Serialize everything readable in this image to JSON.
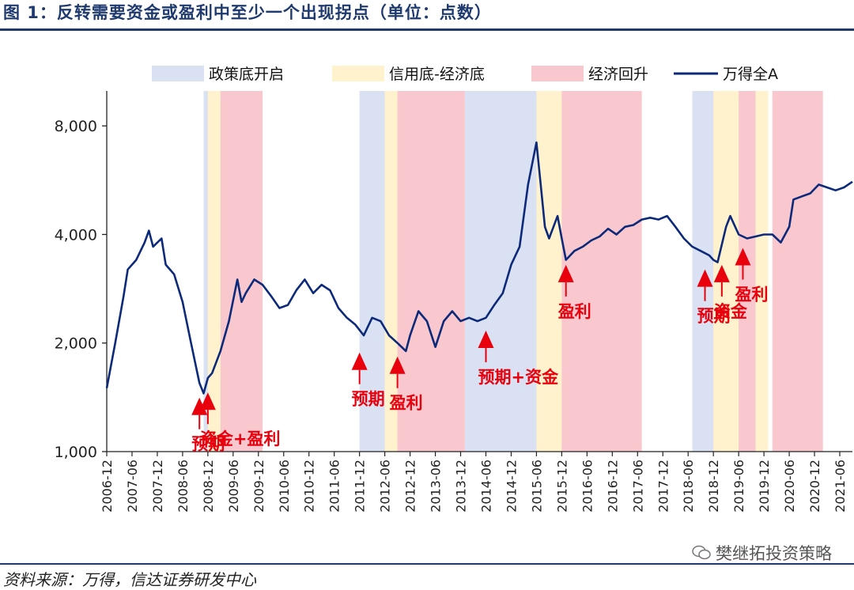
{
  "title": "图 1：反转需要资金或盈利中至少一个出现拐点（单位：点数）",
  "source": "资料来源：万得，信达证券研发中心",
  "watermark": "樊继拓投资策略",
  "colors": {
    "accent": "#1f3a6e",
    "line": "#0d2a7a",
    "policy": "#d9e1f2",
    "credit": "#fff2cc",
    "recovery": "#f8c8ce",
    "annotation": "#e8000d"
  },
  "chart_data": {
    "type": "line",
    "y_scale": "log",
    "ylim": [
      1000,
      10000
    ],
    "yticks": [
      1000,
      2000,
      4000,
      8000
    ],
    "ytick_labels": [
      "1,000",
      "2,000",
      "4,000",
      "8,000"
    ],
    "xticks": [
      "2006-12",
      "2007-06",
      "2007-12",
      "2008-06",
      "2008-12",
      "2009-06",
      "2009-12",
      "2010-06",
      "2010-12",
      "2011-06",
      "2011-12",
      "2012-06",
      "2012-12",
      "2013-06",
      "2013-12",
      "2014-06",
      "2014-12",
      "2015-06",
      "2015-12",
      "2016-06",
      "2016-12",
      "2017-06",
      "2017-12",
      "2018-06",
      "2018-12",
      "2019-06",
      "2019-12",
      "2020-06",
      "2020-12",
      "2021-06"
    ],
    "legend": [
      "政策底开启",
      "信用底-经济底",
      "经济回升",
      "万得全A"
    ],
    "legend_position": "top",
    "series": [
      {
        "name": "万得全A",
        "x": [
          "2006-12",
          "2007-02",
          "2007-04",
          "2007-05",
          "2007-07",
          "2007-09",
          "2007-10",
          "2007-11",
          "2008-01",
          "2008-02",
          "2008-04",
          "2008-06",
          "2008-08",
          "2008-10",
          "2008-11",
          "2008-12",
          "2009-01",
          "2009-03",
          "2009-05",
          "2009-07",
          "2009-08",
          "2009-09",
          "2009-11",
          "2010-01",
          "2010-03",
          "2010-05",
          "2010-07",
          "2010-09",
          "2010-11",
          "2011-01",
          "2011-03",
          "2011-05",
          "2011-07",
          "2011-09",
          "2011-11",
          "2012-01",
          "2012-03",
          "2012-05",
          "2012-07",
          "2012-09",
          "2012-11",
          "2012-12",
          "2013-02",
          "2013-04",
          "2013-06",
          "2013-08",
          "2013-10",
          "2013-12",
          "2014-02",
          "2014-04",
          "2014-06",
          "2014-08",
          "2014-10",
          "2014-12",
          "2015-02",
          "2015-04",
          "2015-06",
          "2015-07",
          "2015-08",
          "2015-09",
          "2015-11",
          "2015-12",
          "2016-01",
          "2016-03",
          "2016-05",
          "2016-07",
          "2016-09",
          "2016-11",
          "2017-01",
          "2017-03",
          "2017-05",
          "2017-07",
          "2017-09",
          "2017-11",
          "2018-01",
          "2018-03",
          "2018-05",
          "2018-07",
          "2018-09",
          "2018-11",
          "2018-12",
          "2019-01",
          "2019-03",
          "2019-04",
          "2019-06",
          "2019-08",
          "2019-10",
          "2019-12",
          "2020-02",
          "2020-04",
          "2020-06",
          "2020-07",
          "2020-09",
          "2020-11",
          "2021-01",
          "2021-03",
          "2021-05",
          "2021-07",
          "2021-09"
        ],
        "y": [
          1500,
          2000,
          2700,
          3200,
          3400,
          3800,
          4100,
          3700,
          3900,
          3300,
          3100,
          2600,
          2000,
          1550,
          1450,
          1600,
          1650,
          1900,
          2300,
          3000,
          2600,
          2750,
          3000,
          2900,
          2700,
          2500,
          2550,
          2800,
          3000,
          2750,
          2900,
          2800,
          2500,
          2350,
          2250,
          2100,
          2350,
          2300,
          2100,
          2000,
          1900,
          2100,
          2450,
          2300,
          1950,
          2300,
          2450,
          2300,
          2350,
          2300,
          2350,
          2550,
          2750,
          3300,
          3700,
          5500,
          7200,
          5500,
          4200,
          3900,
          4500,
          3900,
          3400,
          3600,
          3700,
          3850,
          3950,
          4150,
          4000,
          4200,
          4250,
          4400,
          4450,
          4400,
          4500,
          4200,
          3900,
          3700,
          3600,
          3500,
          3400,
          3350,
          4200,
          4500,
          4000,
          3900,
          3950,
          4000,
          4000,
          3800,
          4200,
          5000,
          5100,
          5200,
          5500,
          5400,
          5300,
          5400,
          5600
        ]
      }
    ],
    "shaded_periods": {
      "政策底开启": [
        [
          "2008-11",
          "2008-12"
        ],
        [
          "2011-12",
          "2012-06"
        ],
        [
          "2014-01",
          "2015-06"
        ],
        [
          "2018-07",
          "2018-12"
        ],
        [
          "2019-12",
          "2019-12"
        ]
      ],
      "信用底-经济底": [
        [
          "2008-12",
          "2009-03"
        ],
        [
          "2012-06",
          "2012-09"
        ],
        [
          "2015-06",
          "2015-12"
        ],
        [
          "2018-12",
          "2019-06"
        ],
        [
          "2019-09",
          "2019-12"
        ]
      ],
      "经济回升": [
        [
          "2009-03",
          "2009-12"
        ],
        [
          "2012-09",
          "2013-12"
        ],
        [
          "2015-12",
          "2017-06"
        ],
        [
          "2019-06",
          "2019-09"
        ],
        [
          "2020-02",
          "2021-01"
        ]
      ]
    },
    "annotations": [
      {
        "text": "预期",
        "date": "2008-10",
        "value": 1500
      },
      {
        "text": "资金+盈利",
        "date": "2008-12",
        "value": 1550
      },
      {
        "text": "预期",
        "date": "2011-12",
        "value": 2000
      },
      {
        "text": "盈利",
        "date": "2012-09",
        "value": 1950
      },
      {
        "text": "预期+资金",
        "date": "2014-06",
        "value": 2300
      },
      {
        "text": "盈利",
        "date": "2016-01",
        "value": 3500
      },
      {
        "text": "预期",
        "date": "2018-10",
        "value": 3400
      },
      {
        "text": "资金",
        "date": "2019-02",
        "value": 3500
      },
      {
        "text": "盈利",
        "date": "2019-07",
        "value": 3900
      }
    ]
  }
}
